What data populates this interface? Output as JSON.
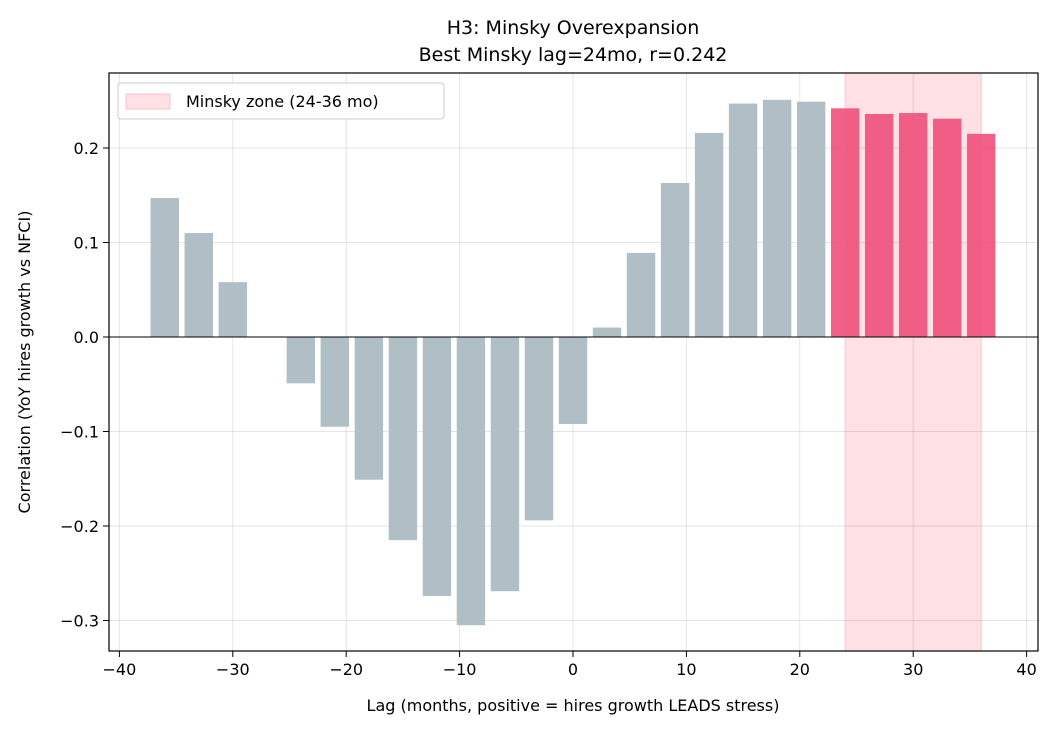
{
  "chart_data": {
    "type": "bar",
    "title": "H3: Minsky Overexpansion",
    "subtitle": "Best Minsky lag=24mo, r=0.242",
    "xlabel": "Lag (months, positive = hires growth LEADS stress)",
    "ylabel": "Correlation (YoY hires growth vs NFCI)",
    "xlim": [
      -41,
      41
    ],
    "ylim": [
      -0.333,
      0.28
    ],
    "xticks": [
      -40,
      -30,
      -20,
      -10,
      0,
      10,
      20,
      30,
      40
    ],
    "xtick_labels": [
      "−40",
      "−30",
      "−20",
      "−10",
      "0",
      "10",
      "20",
      "30",
      "40"
    ],
    "yticks": [
      -0.3,
      -0.2,
      -0.1,
      0.0,
      0.1,
      0.2
    ],
    "ytick_labels": [
      "−0.3",
      "−0.2",
      "−0.1",
      "0.0",
      "0.1",
      "0.2"
    ],
    "grid": true,
    "legend": {
      "placement": "top-left",
      "entries": [
        "Minsky zone (24-36 mo)"
      ]
    },
    "zone": {
      "from": 24,
      "to": 36,
      "color": "#ffe0e4"
    },
    "colors": {
      "normal": "#b0bec5",
      "zone": "#f0507a"
    },
    "x": [
      -36,
      -33,
      -30,
      -24,
      -21,
      -18,
      -15,
      -12,
      -9,
      -6,
      -3,
      0,
      3,
      6,
      9,
      12,
      15,
      18,
      21,
      24,
      27,
      30,
      33,
      36
    ],
    "values": [
      0.147,
      0.11,
      0.058,
      -0.049,
      -0.095,
      -0.151,
      -0.215,
      -0.274,
      -0.305,
      -0.269,
      -0.194,
      -0.092,
      0.01,
      0.089,
      0.163,
      0.216,
      0.247,
      0.251,
      0.249,
      0.242,
      0.236,
      0.237,
      0.231,
      0.215
    ]
  }
}
